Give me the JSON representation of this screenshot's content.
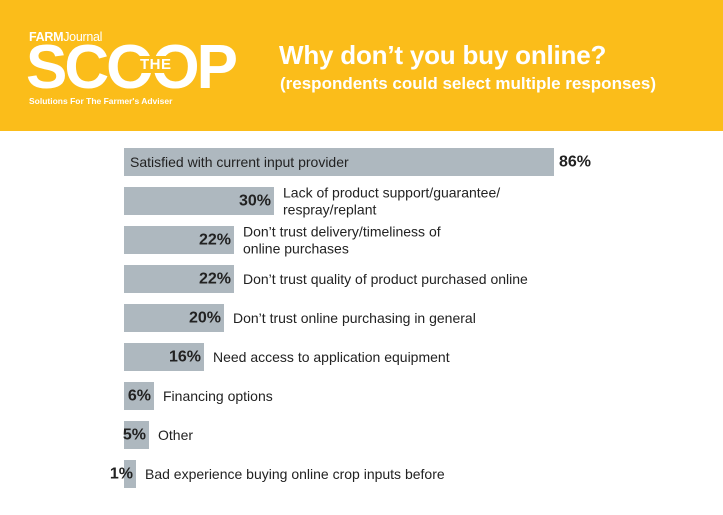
{
  "header": {
    "logo": {
      "brand_bold": "FARM",
      "brand_rest": "Journal",
      "word": "SCOOP",
      "the": "THE",
      "tagline": "Solutions For The Farmer's Adviser"
    },
    "title": "Why don’t you buy online?",
    "subtitle": "(respondents could select multiple responses)"
  },
  "colors": {
    "header_bg": "#fbbd1a",
    "bar": "#aeb8bf",
    "text": "#222222"
  },
  "chart_data": {
    "type": "bar",
    "orientation": "horizontal",
    "xlim": [
      0,
      100
    ],
    "categories": [
      "Satisfied with current input provider",
      "Lack of product support/guarantee/ respray/replant",
      "Don’t trust delivery/timeliness of online purchases",
      "Don’t trust quality of product purchased online",
      "Don’t trust online purchasing in general",
      "Need access to application equipment",
      "Financing options",
      "Other",
      "Bad experience buying online crop inputs before"
    ],
    "category_lines": [
      [
        "Satisfied with current input provider"
      ],
      [
        "Lack of product support/guarantee/",
        "respray/replant"
      ],
      [
        "Don’t trust delivery/timeliness of",
        "online purchases"
      ],
      [
        "Don’t trust quality of product purchased online"
      ],
      [
        "Don’t trust online purchasing in general"
      ],
      [
        "Need access to application equipment"
      ],
      [
        "Financing options"
      ],
      [
        "Other"
      ],
      [
        "Bad experience buying online crop inputs before"
      ]
    ],
    "values": [
      86,
      30,
      22,
      22,
      20,
      16,
      6,
      5,
      1
    ],
    "value_labels": [
      "86%",
      "30%",
      "22%",
      "22%",
      "20%",
      "16%",
      "6%",
      "5%",
      "1%"
    ]
  }
}
